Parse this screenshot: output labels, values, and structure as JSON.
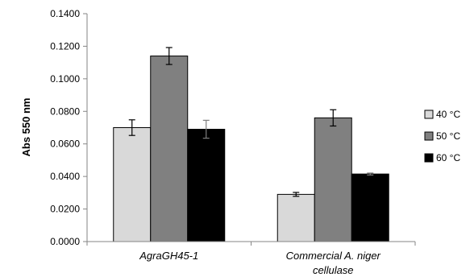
{
  "chart_data": {
    "type": "bar",
    "ylabel": "Abs 550 nm",
    "ylim": [
      0,
      0.14
    ],
    "y_ticks": [
      "0.0000",
      "0.0200",
      "0.0400",
      "0.0600",
      "0.0800",
      "0.1000",
      "0.1200",
      "0.1400"
    ],
    "categories": [
      {
        "lines": [
          "AgraGH45-1"
        ]
      },
      {
        "lines": [
          "Commercial A. niger",
          "cellulase"
        ]
      }
    ],
    "series": [
      {
        "name": "40 °C",
        "color": "#d9d9d9",
        "values": [
          0.07,
          0.029
        ],
        "errors": [
          0.0048,
          0.0012
        ]
      },
      {
        "name": "50 °C",
        "color": "#808080",
        "values": [
          0.114,
          0.076
        ],
        "errors": [
          0.0052,
          0.005
        ]
      },
      {
        "name": "60 °C",
        "color": "#000000",
        "values": [
          0.069,
          0.0415
        ],
        "errors": [
          0.0055,
          0.0006
        ]
      }
    ],
    "grid": false,
    "legend_position": "right"
  }
}
